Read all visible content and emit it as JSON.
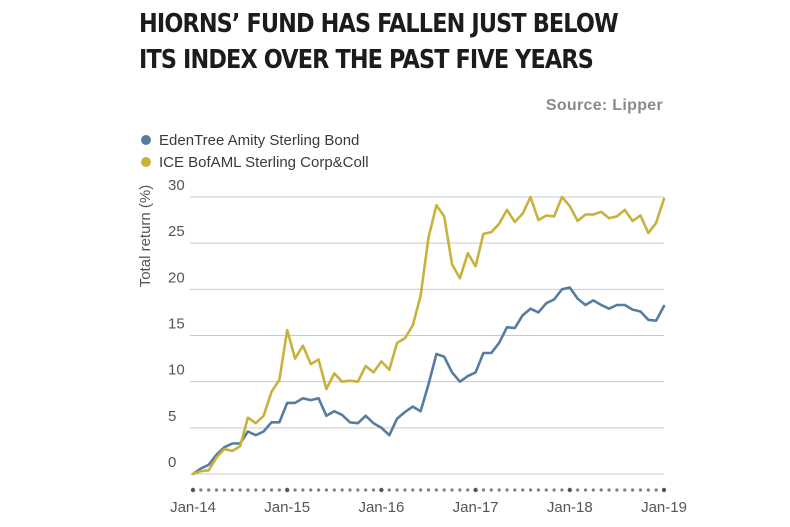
{
  "header": {
    "title_line1": "HIORNS’ FUND HAS FALLEN JUST BELOW",
    "title_line2": "ITS INDEX OVER THE PAST FIVE YEARS",
    "source": "Source: Lipper"
  },
  "chart_data": {
    "type": "line",
    "title": "HIORNS’ FUND HAS FALLEN JUST BELOW ITS INDEX OVER THE PAST FIVE YEARS",
    "source": "Source: Lipper",
    "ylabel": "Total return (%)",
    "xlabel": "",
    "ylim": [
      0,
      30
    ],
    "yticks": [
      0,
      5,
      10,
      15,
      20,
      25,
      30
    ],
    "x_start": "Jan-14",
    "x_ticks": [
      "Jan-14",
      "Jan-15",
      "Jan-16",
      "Jan-17",
      "Jan-18",
      "Jan-19"
    ],
    "grid": true,
    "legend_position": "top-left",
    "series": [
      {
        "name": "EdenTree Amity Sterling Bond",
        "color": "#587ca0",
        "values": [
          0,
          0.6,
          1.0,
          2.1,
          2.9,
          3.3,
          3.3,
          4.6,
          4.2,
          4.6,
          5.6,
          5.6,
          7.7,
          7.7,
          8.2,
          8.0,
          8.2,
          6.3,
          6.8,
          6.4,
          5.6,
          5.5,
          6.3,
          5.5,
          5.0,
          4.2,
          6.0,
          6.7,
          7.3,
          6.8,
          9.7,
          13.0,
          12.7,
          11.0,
          10.0,
          10.6,
          11.0,
          13.1,
          13.1,
          14.2,
          15.9,
          15.8,
          17.2,
          17.9,
          17.5,
          18.5,
          18.9,
          20.0,
          20.2,
          19.0,
          18.3,
          18.8,
          18.3,
          17.9,
          18.3,
          18.3,
          17.8,
          17.6,
          16.7,
          16.6,
          18.2
        ]
      },
      {
        "name": "ICE BofAML Sterling Corp&Coll",
        "color": "#c8b23c",
        "values": [
          0,
          0.3,
          0.4,
          1.8,
          2.7,
          2.5,
          3.0,
          6.1,
          5.5,
          6.3,
          8.9,
          10.2,
          15.6,
          12.5,
          13.9,
          11.9,
          12.4,
          9.2,
          10.9,
          10.0,
          10.1,
          10.0,
          11.7,
          11.0,
          12.2,
          11.3,
          14.2,
          14.7,
          16.1,
          19.3,
          25.6,
          29.1,
          27.9,
          22.7,
          21.2,
          23.9,
          22.5,
          26.0,
          26.2,
          27.1,
          28.6,
          27.3,
          28.2,
          30.0,
          27.5,
          28.0,
          27.9,
          30.0,
          29.0,
          27.4,
          28.1,
          28.1,
          28.4,
          27.7,
          27.9,
          28.6,
          27.4,
          28.0,
          26.1,
          27.2,
          29.8
        ]
      }
    ]
  }
}
